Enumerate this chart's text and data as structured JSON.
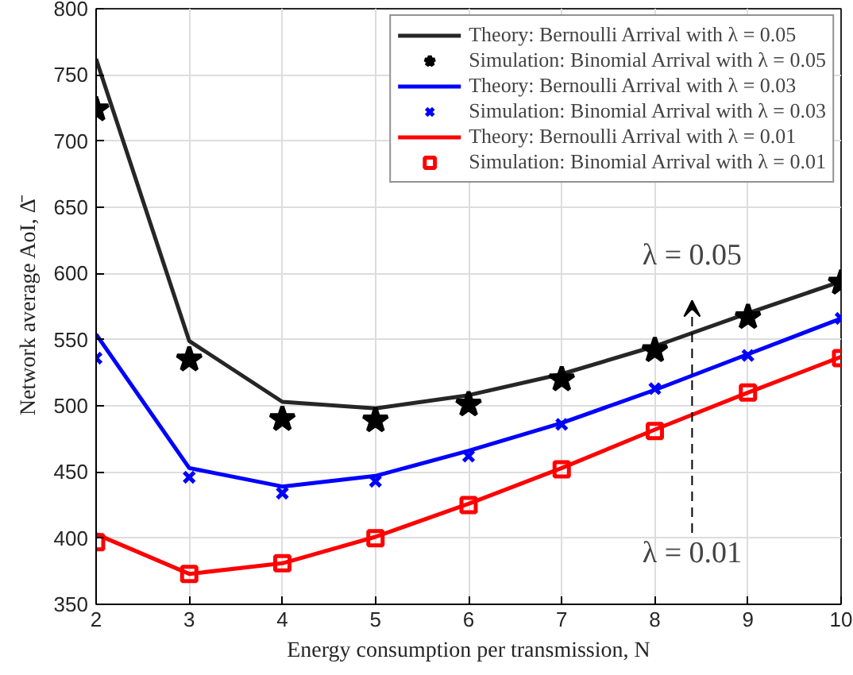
{
  "chart_data": {
    "type": "line",
    "xlabel": "Energy consumption per transmission, N",
    "ylabel": "Network average AoI, Δ̄",
    "x": [
      2,
      3,
      4,
      5,
      6,
      7,
      8,
      9,
      10
    ],
    "series": [
      {
        "name": "Theory: Bernoulli Arrival with λ = 0.05",
        "type": "line",
        "marker": "none",
        "color": "#262626",
        "values": [
          762,
          549,
          503,
          498,
          508,
          524,
          545,
          570,
          594
        ]
      },
      {
        "name": "Simulation: Binomial Arrival with λ = 0.05",
        "type": "scatter",
        "marker": "star",
        "color": "#000000",
        "values": [
          724,
          535,
          490,
          489,
          501,
          520,
          542,
          567,
          593
        ]
      },
      {
        "name": "Theory: Bernoulli Arrival with λ = 0.03",
        "type": "line",
        "marker": "none",
        "color": "#0000ff",
        "values": [
          554,
          453,
          439,
          447,
          466,
          487,
          512,
          539,
          566
        ]
      },
      {
        "name": "Simulation: Binomial Arrival with λ = 0.03",
        "type": "scatter",
        "marker": "cross",
        "color": "#0000ff",
        "values": [
          536,
          446,
          434,
          443,
          462,
          486,
          513,
          538,
          566
        ]
      },
      {
        "name": "Theory: Bernoulli Arrival with λ = 0.01",
        "type": "line",
        "marker": "none",
        "color": "#ff0000",
        "values": [
          403,
          373,
          381,
          401,
          426,
          453,
          482,
          510,
          537
        ]
      },
      {
        "name": "Simulation: Binomial Arrival with λ = 0.01",
        "type": "scatter",
        "marker": "square",
        "color": "#ff0000",
        "values": [
          397,
          373,
          381,
          400,
          425,
          452,
          481,
          510,
          536
        ]
      }
    ],
    "annotations": [
      "λ = 0.05",
      "λ = 0.01"
    ],
    "xlim": [
      2,
      10
    ],
    "ylim": [
      350,
      800
    ],
    "xticks": [
      2,
      3,
      4,
      5,
      6,
      7,
      8,
      9,
      10
    ],
    "yticks": [
      350,
      400,
      450,
      500,
      550,
      600,
      650,
      700,
      750,
      800
    ],
    "grid": true,
    "legend": "top right"
  }
}
